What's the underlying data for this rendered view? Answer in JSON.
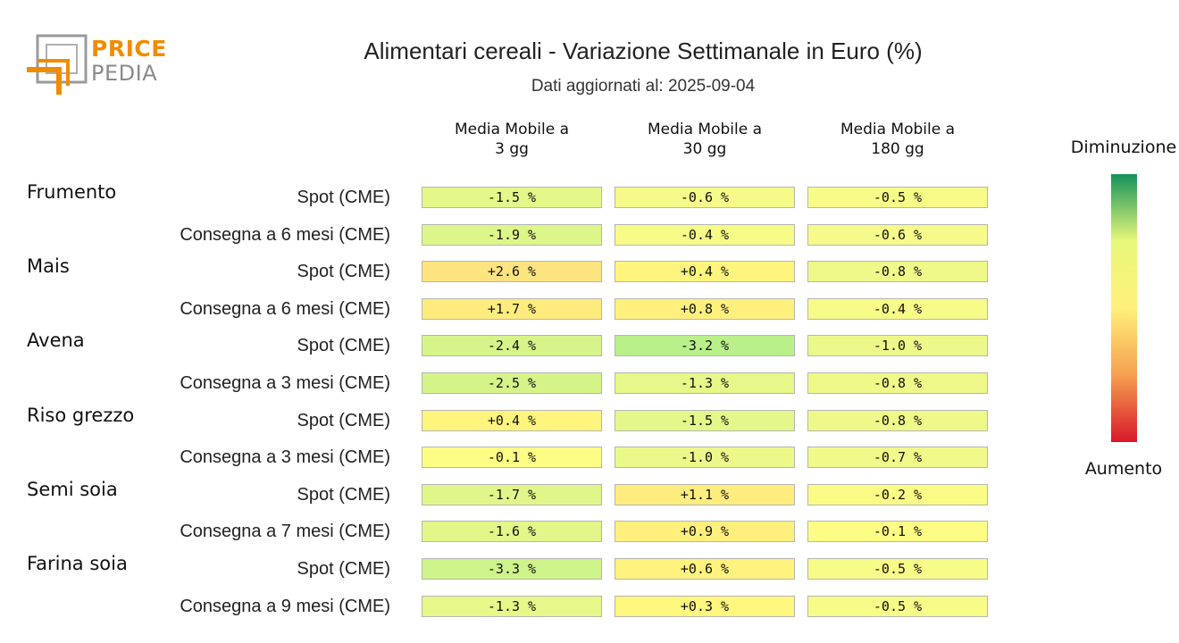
{
  "brand": {
    "line1": "PRICE",
    "line2": "PEDIA",
    "orange": "#f08c00",
    "gray": "#8a8a8a"
  },
  "header": {
    "title": "Alimentari cereali - Variazione Settimanale in Euro (%)",
    "subtitle": "Dati aggiornati al: 2025-09-04"
  },
  "legend": {
    "top_label": "Diminuzione",
    "bottom_label": "Aumento",
    "colors": [
      "#15925a",
      "#e8f87a",
      "#fff07a",
      "#f5a050",
      "#d9172a"
    ]
  },
  "chart_data": {
    "type": "table",
    "columns": [
      "Media Mobile a\n3 gg",
      "Media Mobile a\n30 gg",
      "Media Mobile a\n180 gg"
    ],
    "columns_lines": [
      [
        "Media Mobile a",
        "3 gg"
      ],
      [
        "Media Mobile a",
        "30 gg"
      ],
      [
        "Media Mobile a",
        "180 gg"
      ]
    ],
    "rows": [
      {
        "group": "Frumento",
        "label": "Spot (CME)",
        "values": [
          -1.5,
          -0.6,
          -0.5
        ],
        "texts": [
          "-1.5 %",
          "-0.6 %",
          "-0.5 %"
        ],
        "colors": [
          "#e4f78a",
          "#f5fa8a",
          "#f7fb88"
        ]
      },
      {
        "group": "",
        "label": "Consegna a 6 mesi (CME)",
        "values": [
          -1.9,
          -0.4,
          -0.6
        ],
        "texts": [
          "-1.9 %",
          "-0.4 %",
          "-0.6 %"
        ],
        "colors": [
          "#ddf68a",
          "#f7fb88",
          "#f5fa8a"
        ]
      },
      {
        "group": "Mais",
        "label": "Spot (CME)",
        "values": [
          2.6,
          0.4,
          -0.8
        ],
        "texts": [
          "+2.6 %",
          "+0.4 %",
          "-0.8 %"
        ],
        "colors": [
          "#fde480",
          "#fff57e",
          "#eef98a"
        ]
      },
      {
        "group": "",
        "label": "Consegna a 6 mesi (CME)",
        "values": [
          1.7,
          0.8,
          -0.4
        ],
        "texts": [
          "+1.7 %",
          "+0.8 %",
          "-0.4 %"
        ],
        "colors": [
          "#feeb7e",
          "#fff07e",
          "#f7fb88"
        ]
      },
      {
        "group": "Avena",
        "label": "Spot (CME)",
        "values": [
          -2.4,
          -3.2,
          -1.0
        ],
        "texts": [
          "-2.4 %",
          "-3.2 %",
          "-1.0 %"
        ],
        "colors": [
          "#d6f48a",
          "#b9f08a",
          "#ebf98a"
        ]
      },
      {
        "group": "",
        "label": "Consegna a 3 mesi (CME)",
        "values": [
          -2.5,
          -1.3,
          -0.8
        ],
        "texts": [
          "-2.5 %",
          "-1.3 %",
          "-0.8 %"
        ],
        "colors": [
          "#d4f48a",
          "#e7f78a",
          "#eef98a"
        ]
      },
      {
        "group": "Riso grezzo",
        "label": "Spot (CME)",
        "values": [
          0.4,
          -1.5,
          -0.8
        ],
        "texts": [
          "+0.4 %",
          "-1.5 %",
          "-0.8 %"
        ],
        "colors": [
          "#fff57e",
          "#e4f78a",
          "#eef98a"
        ]
      },
      {
        "group": "",
        "label": "Consegna a 3 mesi (CME)",
        "values": [
          -0.1,
          -1.0,
          -0.7
        ],
        "texts": [
          "-0.1 %",
          "-1.0 %",
          "-0.7 %"
        ],
        "colors": [
          "#fdfd86",
          "#ebf98a",
          "#f0f98a"
        ]
      },
      {
        "group": "Semi soia",
        "label": "Spot (CME)",
        "values": [
          -1.7,
          1.1,
          -0.2
        ],
        "texts": [
          "-1.7 %",
          "+1.1 %",
          "-0.2 %"
        ],
        "colors": [
          "#e1f68a",
          "#feed7e",
          "#fbfc86"
        ]
      },
      {
        "group": "",
        "label": "Consegna a 7 mesi (CME)",
        "values": [
          -1.6,
          0.9,
          -0.1
        ],
        "texts": [
          "-1.6 %",
          "+0.9 %",
          "-0.1 %"
        ],
        "colors": [
          "#e2f68a",
          "#fff07e",
          "#fdfd86"
        ]
      },
      {
        "group": "Farina soia",
        "label": "Spot (CME)",
        "values": [
          -3.3,
          0.6,
          -0.5
        ],
        "texts": [
          "-3.3 %",
          "+0.6 %",
          "-0.5 %"
        ],
        "colors": [
          "#cef38a",
          "#fff27e",
          "#f7fb88"
        ]
      },
      {
        "group": "",
        "label": "Consegna a 9 mesi (CME)",
        "values": [
          -1.3,
          0.3,
          -0.5
        ],
        "texts": [
          "-1.3 %",
          "+0.3 %",
          "-0.5 %"
        ],
        "colors": [
          "#e7f78a",
          "#fff67e",
          "#f7fb88"
        ]
      }
    ]
  }
}
